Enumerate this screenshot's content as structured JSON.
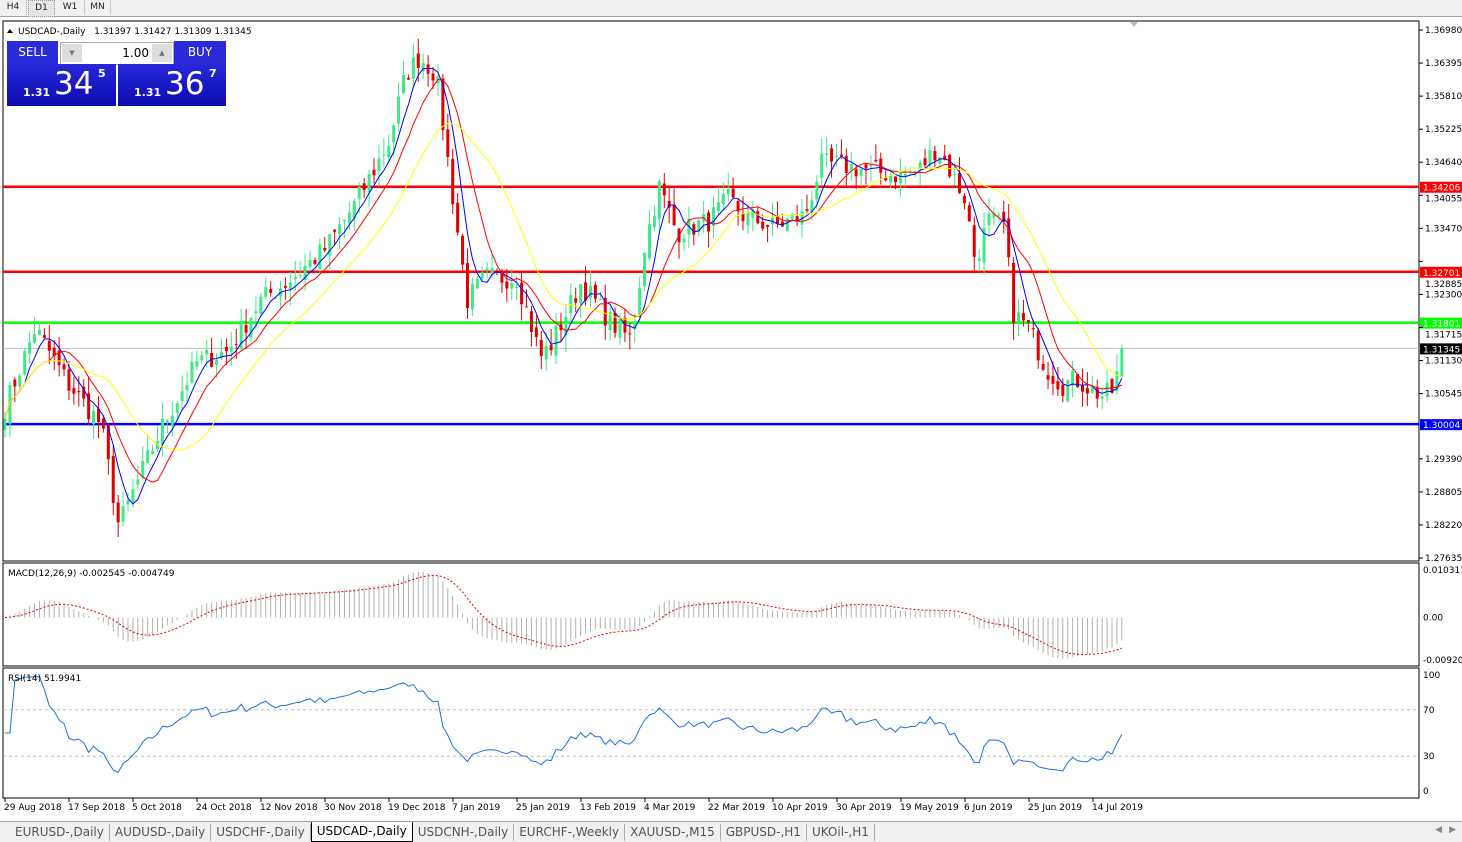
{
  "timeframes": [
    "H4",
    "D1",
    "W1",
    "MN"
  ],
  "active_timeframe": "D1",
  "chart_header": {
    "symbol": "USDCAD-,Daily",
    "ohlc": "1.31397 1.31427 1.31309 1.31345"
  },
  "trade_panel": {
    "sell_label": "SELL",
    "buy_label": "BUY",
    "lot": "1.00",
    "sell_price": {
      "prefix": "1.31",
      "big": "34",
      "sup": "5"
    },
    "buy_price": {
      "prefix": "1.31",
      "big": "36",
      "sup": "7"
    },
    "colors": {
      "button": "#2a2ad8"
    }
  },
  "chart_data": [
    {
      "type": "candlestick",
      "symbol": "USDCAD-",
      "timeframe": "Daily",
      "price_ticks": [
        "1.36980",
        "1.36395",
        "1.35810",
        "1.35225",
        "1.34640",
        "1.34055",
        "1.33470",
        "1.32885",
        "1.32300",
        "1.31715",
        "1.31130",
        "1.30545",
        "1.29390",
        "1.28805",
        "1.28220",
        "1.27635"
      ],
      "ylim": [
        1.27635,
        1.3698
      ],
      "date_ticks": [
        "29 Aug 2018",
        "17 Sep 2018",
        "5 Oct 2018",
        "24 Oct 2018",
        "12 Nov 2018",
        "30 Nov 2018",
        "19 Dec 2018",
        "7 Jan 2019",
        "25 Jan 2019",
        "13 Feb 2019",
        "4 Mar 2019",
        "22 Mar 2019",
        "10 Apr 2019",
        "30 Apr 2019",
        "19 May 2019",
        "6 Jun 2019",
        "25 Jun 2019",
        "14 Jul 2019"
      ],
      "approx_close_path": [
        [
          "2018-08-29",
          1.303
        ],
        [
          "2018-09-07",
          1.317
        ],
        [
          "2018-09-17",
          1.307
        ],
        [
          "2018-09-26",
          1.3
        ],
        [
          "2018-10-01",
          1.282
        ],
        [
          "2018-10-05",
          1.288
        ],
        [
          "2018-10-14",
          1.3
        ],
        [
          "2018-10-24",
          1.311
        ],
        [
          "2018-11-02",
          1.313
        ],
        [
          "2018-11-12",
          1.322
        ],
        [
          "2018-11-21",
          1.326
        ],
        [
          "2018-11-30",
          1.331
        ],
        [
          "2018-12-09",
          1.339
        ],
        [
          "2018-12-19",
          1.35
        ],
        [
          "2018-12-24",
          1.362
        ],
        [
          "2018-12-28",
          1.365
        ],
        [
          "2019-01-02",
          1.362
        ],
        [
          "2019-01-07",
          1.34
        ],
        [
          "2019-01-11",
          1.322
        ],
        [
          "2019-01-16",
          1.326
        ],
        [
          "2019-01-25",
          1.326
        ],
        [
          "2019-02-01",
          1.312
        ],
        [
          "2019-02-04",
          1.314
        ],
        [
          "2019-02-13",
          1.325
        ],
        [
          "2019-02-22",
          1.318
        ],
        [
          "2019-02-28",
          1.315
        ],
        [
          "2019-03-04",
          1.332
        ],
        [
          "2019-03-08",
          1.342
        ],
        [
          "2019-03-13",
          1.334
        ],
        [
          "2019-03-22",
          1.336
        ],
        [
          "2019-03-28",
          1.34
        ],
        [
          "2019-04-01",
          1.337
        ],
        [
          "2019-04-10",
          1.335
        ],
        [
          "2019-04-20",
          1.337
        ],
        [
          "2019-04-25",
          1.346
        ],
        [
          "2019-04-30",
          1.346
        ],
        [
          "2019-05-09",
          1.345
        ],
        [
          "2019-05-19",
          1.344
        ],
        [
          "2019-05-24",
          1.345
        ],
        [
          "2019-05-29",
          1.349
        ],
        [
          "2019-05-31",
          1.347
        ],
        [
          "2019-06-06",
          1.34
        ],
        [
          "2019-06-09",
          1.329
        ],
        [
          "2019-06-13",
          1.336
        ],
        [
          "2019-06-18",
          1.335
        ],
        [
          "2019-06-20",
          1.32
        ],
        [
          "2019-06-25",
          1.317
        ],
        [
          "2019-06-30",
          1.31
        ],
        [
          "2019-07-05",
          1.307
        ],
        [
          "2019-07-09",
          1.308
        ],
        [
          "2019-07-14",
          1.306
        ],
        [
          "2019-07-17",
          1.305
        ],
        [
          "2019-07-20",
          1.306
        ],
        [
          "2019-07-23",
          1.31345
        ]
      ],
      "last_price": "1.31345",
      "moving_averages": [
        {
          "color": "#0000ff"
        },
        {
          "color": "#ff0000"
        },
        {
          "color": "#ffff00"
        }
      ],
      "horizontal_lines": [
        {
          "price": "1.34206",
          "color": "#ff0000"
        },
        {
          "price": "1.32701",
          "color": "#ff0000"
        },
        {
          "price": "1.31801",
          "color": "#00ff00"
        },
        {
          "price": "1.30004",
          "color": "#0000ff"
        }
      ],
      "colors": {
        "bull": "#3ee88a",
        "bear": "#e00000"
      }
    },
    {
      "type": "macd",
      "label": "MACD(12,26,9) -0.002545 -0.004749",
      "ticks": [
        "0.010311",
        "0.00",
        "-0.009203"
      ],
      "ylim": [
        -0.009203,
        0.010311
      ]
    },
    {
      "type": "rsi",
      "label": "RSI(14) 51.9941",
      "ticks": [
        "100",
        "70",
        "30",
        "0"
      ],
      "ylim": [
        0,
        100
      ],
      "levels": [
        70,
        30
      ]
    }
  ],
  "symbol_tabs": [
    "EURUSD-,Daily",
    "AUDUSD-,Daily",
    "USDCHF-,Daily",
    "USDCAD-,Daily",
    "USDCNH-,Daily",
    "EURCHF-,Weekly",
    "XAUUSD-,M15",
    "GBPUSD-,H1",
    "UKOil-,H1"
  ],
  "active_tab": "USDCAD-,Daily"
}
